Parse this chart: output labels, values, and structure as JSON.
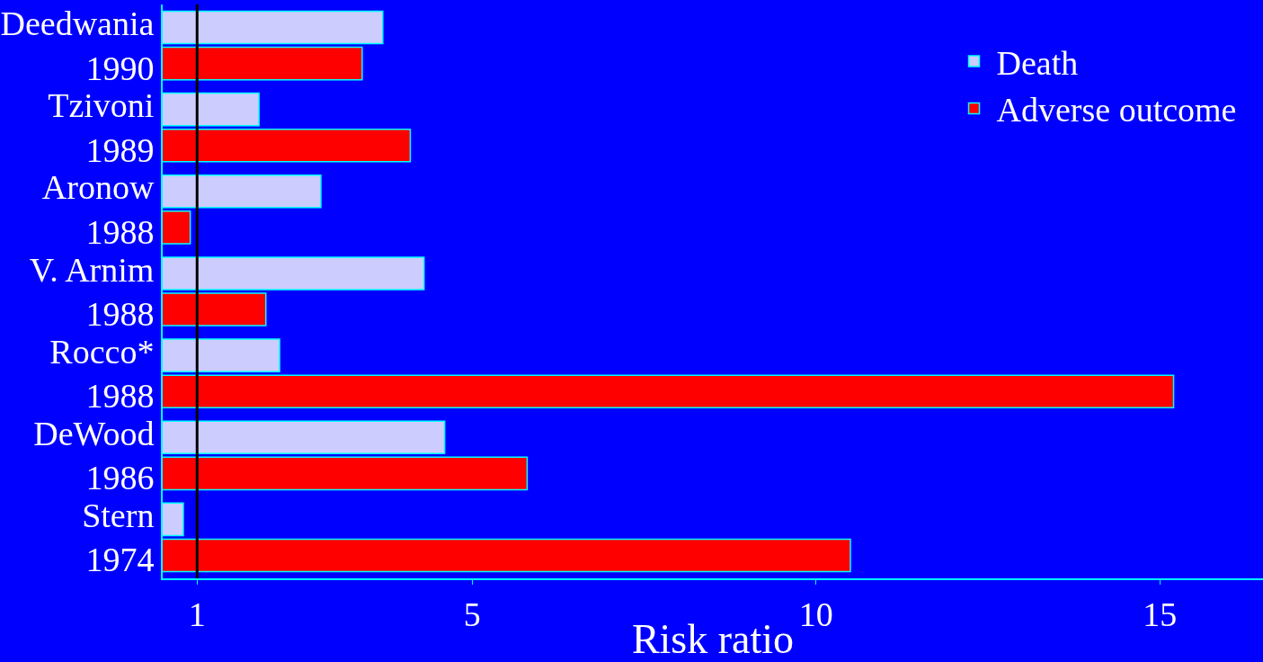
{
  "chart_data": {
    "type": "bar",
    "orientation": "horizontal",
    "xlabel": "Risk ratio",
    "categories": [
      "Deedwania\n1990",
      "Tzivoni\n1989",
      "Aronow\n1988",
      "V. Arnim\n1988",
      "Rocco*\n1988",
      "DeWood\n1986",
      "Stern\n1974"
    ],
    "series": [
      {
        "name": "Death",
        "color": "#ccccff",
        "values": [
          3.7,
          1.9,
          2.8,
          4.3,
          2.2,
          4.6,
          0.8
        ]
      },
      {
        "name": "Adverse outcome",
        "color": "#ff0000",
        "values": [
          3.4,
          4.1,
          0.9,
          2.0,
          15.2,
          5.8,
          10.5
        ]
      }
    ],
    "xlim": [
      0.5,
      16.5
    ],
    "xticks": [
      1,
      5,
      10,
      15
    ],
    "ref_lines": [
      {
        "axis": "x",
        "value": 1,
        "color": "#000000"
      }
    ],
    "legend": "top right",
    "grid": false
  }
}
